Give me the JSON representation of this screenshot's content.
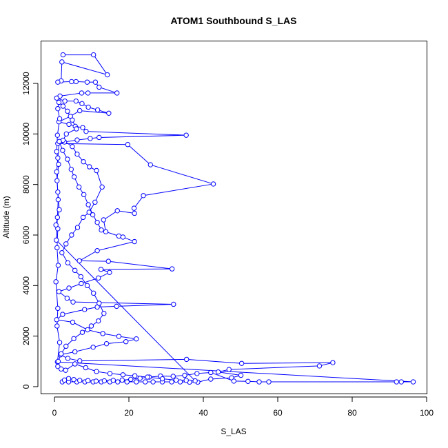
{
  "chart_data": {
    "type": "line",
    "title": "ATOM1 Southbound S_LAS",
    "xlabel": "S_LAS",
    "ylabel": "Altitude (m)",
    "xlim": [
      0,
      100
    ],
    "ylim": [
      0,
      13000
    ],
    "xticks": [
      0,
      20,
      40,
      60,
      80,
      100
    ],
    "yticks": [
      0,
      2000,
      4000,
      6000,
      8000,
      10000,
      12000
    ],
    "color": "#0000ff",
    "marker": "open-circle",
    "grid": false,
    "series": [
      {
        "points": [
          [
            2.3,
            13130
          ],
          [
            10.5,
            13130
          ],
          [
            14.2,
            12340
          ],
          [
            2.0,
            12850
          ],
          [
            1.8,
            12100
          ],
          [
            0.9,
            12050
          ],
          [
            4.6,
            12070
          ],
          [
            5.8,
            12070
          ],
          [
            8.8,
            12050
          ],
          [
            11.0,
            12050
          ],
          [
            12.0,
            11850
          ],
          [
            16.8,
            11620
          ],
          [
            9.0,
            11620
          ],
          [
            7.3,
            11620
          ],
          [
            1.5,
            11500
          ],
          [
            0.6,
            11420
          ],
          [
            2.8,
            11300
          ],
          [
            5.8,
            11300
          ],
          [
            7.4,
            11200
          ],
          [
            9.1,
            11060
          ],
          [
            11.6,
            10950
          ],
          [
            14.6,
            10820
          ],
          [
            6.8,
            10920
          ],
          [
            4.3,
            10700
          ],
          [
            1.2,
            10480
          ],
          [
            3.9,
            10380
          ],
          [
            5.6,
            10300
          ],
          [
            7.6,
            10250
          ],
          [
            8.5,
            10100
          ],
          [
            35.4,
            9950
          ],
          [
            12.0,
            9860
          ],
          [
            9.6,
            9820
          ],
          [
            6.1,
            9760
          ],
          [
            2.7,
            9680
          ],
          [
            0.9,
            9620
          ],
          [
            19.7,
            9580
          ],
          [
            25.8,
            8780
          ],
          [
            42.7,
            8020
          ],
          [
            23.9,
            7560
          ],
          [
            21.4,
            7060
          ],
          [
            21.5,
            6860
          ],
          [
            16.9,
            6960
          ],
          [
            13.2,
            6600
          ],
          [
            13.8,
            6130
          ],
          [
            17.3,
            5960
          ],
          [
            18.4,
            5920
          ],
          [
            21.5,
            5740
          ],
          [
            11.5,
            5380
          ],
          [
            6.7,
            4980
          ],
          [
            14.5,
            4960
          ],
          [
            31.6,
            4660
          ],
          [
            12.5,
            4640
          ],
          [
            14.8,
            4520
          ],
          [
            11.8,
            4300
          ],
          [
            7.2,
            4080
          ],
          [
            3.9,
            3900
          ],
          [
            1.2,
            3760
          ],
          [
            3.4,
            3500
          ],
          [
            5.0,
            3350
          ],
          [
            32.0,
            3260
          ],
          [
            16.7,
            3180
          ],
          [
            11.5,
            3150
          ],
          [
            8.1,
            3050
          ],
          [
            2.2,
            2860
          ],
          [
            0.6,
            2650
          ],
          [
            4.9,
            2550
          ],
          [
            8.9,
            2250
          ],
          [
            13.0,
            2100
          ],
          [
            17.3,
            1990
          ],
          [
            22.0,
            1890
          ],
          [
            19.2,
            1780
          ],
          [
            14.0,
            1700
          ],
          [
            10.4,
            1560
          ],
          [
            5.5,
            1380
          ],
          [
            1.6,
            1260
          ],
          [
            3.6,
            1120
          ],
          [
            6.8,
            1020
          ],
          [
            35.5,
            1080
          ],
          [
            50.3,
            920
          ],
          [
            74.8,
            950
          ],
          [
            71.2,
            820
          ],
          [
            46.9,
            680
          ],
          [
            44.0,
            580
          ],
          [
            50.1,
            450
          ],
          [
            47.6,
            350
          ],
          [
            42.0,
            300
          ],
          [
            38.5,
            180
          ],
          [
            36.3,
            180
          ],
          [
            33.8,
            190
          ],
          [
            31.5,
            190
          ],
          [
            29.0,
            190
          ],
          [
            26.5,
            190
          ],
          [
            24.4,
            190
          ],
          [
            22.0,
            190
          ],
          [
            19.5,
            190
          ],
          [
            17.0,
            190
          ],
          [
            14.9,
            190
          ],
          [
            12.6,
            190
          ],
          [
            10.4,
            190
          ],
          [
            8.2,
            190
          ],
          [
            6.0,
            190
          ],
          [
            3.8,
            190
          ],
          [
            2.1,
            190
          ],
          [
            2.7,
            260
          ],
          [
            3.8,
            320
          ],
          [
            5.2,
            280
          ],
          [
            6.8,
            250
          ],
          [
            9.0,
            240
          ],
          [
            11.2,
            220
          ],
          [
            13.4,
            230
          ],
          [
            15.8,
            250
          ],
          [
            18.2,
            260
          ],
          [
            20.5,
            290
          ],
          [
            23.0,
            330
          ],
          [
            25.5,
            380
          ],
          [
            28.5,
            420
          ],
          [
            31.9,
            410
          ],
          [
            35.0,
            450
          ],
          [
            38.3,
            520
          ],
          [
            42.0,
            560
          ],
          [
            48.2,
            220
          ],
          [
            52.0,
            210
          ],
          [
            55.0,
            190
          ],
          [
            57.6,
            190
          ],
          [
            91.9,
            190
          ],
          [
            93.2,
            190
          ],
          [
            96.4,
            190
          ],
          [
            0.8,
            980
          ],
          [
            1.4,
            1750
          ],
          [
            0.7,
            2400
          ],
          [
            0.9,
            3100
          ],
          [
            0.4,
            4150
          ],
          [
            1.0,
            4800
          ],
          [
            0.7,
            5500
          ],
          [
            0.9,
            6250
          ],
          [
            0.4,
            6400
          ],
          [
            1.3,
            7000
          ],
          [
            0.9,
            7700
          ],
          [
            0.7,
            8150
          ],
          [
            1.1,
            8800
          ],
          [
            0.6,
            9300
          ],
          [
            0.8,
            9950
          ],
          [
            1.4,
            10600
          ],
          [
            0.9,
            11000
          ],
          [
            1.2,
            11250
          ],
          [
            2.3,
            11100
          ],
          [
            3.5,
            10900
          ],
          [
            4.8,
            10550
          ],
          [
            5.9,
            10200
          ],
          [
            3.2,
            10000
          ],
          [
            2.3,
            9750
          ],
          [
            4.8,
            9500
          ],
          [
            6.1,
            9200
          ],
          [
            7.8,
            8900
          ],
          [
            9.4,
            8700
          ],
          [
            11.3,
            8550
          ],
          [
            12.8,
            7900
          ],
          [
            10.9,
            7300
          ],
          [
            9.3,
            6900
          ],
          [
            7.7,
            6700
          ],
          [
            6.2,
            6300
          ],
          [
            4.6,
            6000
          ],
          [
            3.1,
            5650
          ],
          [
            2.0,
            5300
          ],
          [
            3.6,
            4900
          ],
          [
            5.5,
            4600
          ],
          [
            7.1,
            4350
          ],
          [
            8.8,
            4000
          ],
          [
            10.5,
            3700
          ],
          [
            12.0,
            3300
          ],
          [
            13.3,
            2900
          ],
          [
            11.8,
            2600
          ],
          [
            9.9,
            2400
          ],
          [
            7.5,
            2150
          ],
          [
            5.2,
            1900
          ],
          [
            3.1,
            1600
          ],
          [
            1.8,
            1300
          ],
          [
            1.0,
            1000
          ],
          [
            0.9,
            800
          ],
          [
            1.8,
            700
          ],
          [
            3.0,
            650
          ],
          [
            5.5,
            900
          ],
          [
            8.4,
            750
          ],
          [
            11.3,
            600
          ],
          [
            14.9,
            520
          ],
          [
            18.4,
            470
          ],
          [
            21.6,
            430
          ],
          [
            25.0,
            380
          ],
          [
            29.0,
            310
          ],
          [
            32.7,
            260
          ],
          [
            35.4,
            250
          ],
          [
            37.8,
            230
          ],
          [
            0.5,
            5800
          ],
          [
            0.8,
            6700
          ],
          [
            1.0,
            7400
          ],
          [
            0.6,
            8500
          ],
          [
            0.9,
            9050
          ],
          [
            1.3,
            9700
          ],
          [
            2.2,
            9350
          ],
          [
            3.5,
            9000
          ],
          [
            4.5,
            8600
          ],
          [
            5.3,
            8300
          ],
          [
            6.6,
            7900
          ],
          [
            7.9,
            7600
          ],
          [
            9.1,
            7200
          ],
          [
            10.3,
            6800
          ],
          [
            11.5,
            6500
          ],
          [
            12.6,
            6200
          ]
        ]
      }
    ]
  }
}
